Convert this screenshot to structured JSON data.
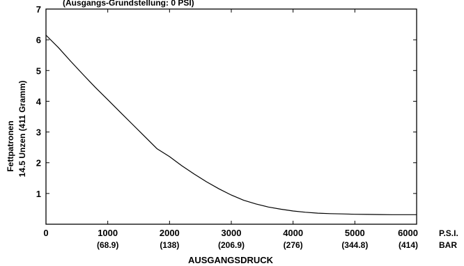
{
  "chart_data": {
    "type": "line",
    "title": "",
    "top_text": "(Ausgangs-Grundstellung: 0 PSI)",
    "xlabel": "AUSGANGSDRUCK",
    "ylabel_line1": "Fettpatronen",
    "ylabel_line2": "14.5 Unzen (411 Gramm)",
    "xlim": [
      0,
      6000
    ],
    "ylim": [
      0,
      7
    ],
    "grid": false,
    "x_units": [
      "P.S.I.",
      "BAR"
    ],
    "y_ticks": [
      "1",
      "2",
      "3",
      "4",
      "5",
      "6",
      "7"
    ],
    "x_ticks": [
      {
        "psi": "0",
        "bar": ""
      },
      {
        "psi": "1000",
        "bar": "(68.9)"
      },
      {
        "psi": "2000",
        "bar": "(138)"
      },
      {
        "psi": "3000",
        "bar": "(206.9)"
      },
      {
        "psi": "4000",
        "bar": "(276)"
      },
      {
        "psi": "5000",
        "bar": "(344.8)"
      },
      {
        "psi": "6000",
        "bar": "(414)"
      }
    ],
    "series": [
      {
        "x": [
          0,
          200,
          400,
          600,
          800,
          1000,
          1200,
          1400,
          1600,
          1800,
          2000,
          2200,
          2400,
          2600,
          2800,
          3000,
          3200,
          3400,
          3600,
          3800,
          4000,
          4200,
          4400,
          4600,
          4800,
          5000,
          5200,
          5400,
          5600,
          5800,
          6000
        ],
        "y": [
          6.15,
          5.75,
          5.3,
          4.87,
          4.45,
          4.05,
          3.65,
          3.25,
          2.85,
          2.45,
          2.2,
          1.9,
          1.63,
          1.38,
          1.15,
          0.95,
          0.78,
          0.66,
          0.56,
          0.49,
          0.43,
          0.39,
          0.36,
          0.345,
          0.335,
          0.325,
          0.32,
          0.315,
          0.31,
          0.31,
          0.31
        ]
      }
    ]
  },
  "colors": {
    "line": "#000000",
    "axis": "#000000",
    "background": "#ffffff"
  }
}
